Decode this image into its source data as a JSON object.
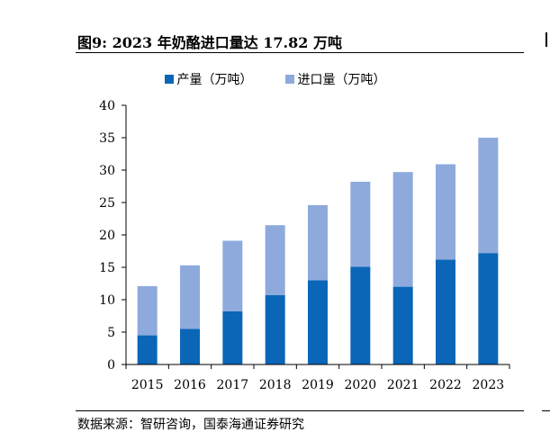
{
  "header": {
    "title": "图9:  2023 年奶酪进口量达 17.82 万吨"
  },
  "footer": {
    "source": "数据来源：智研咨询，国泰海通证券研究"
  },
  "colors": {
    "production": "#0b66b8",
    "import": "#8eaadd",
    "axis": "#000000"
  },
  "chart_data": {
    "type": "bar",
    "stacked": true,
    "categories": [
      "2015",
      "2016",
      "2017",
      "2018",
      "2019",
      "2020",
      "2021",
      "2022",
      "2023"
    ],
    "series": [
      {
        "name": "产量（万吨）",
        "values": [
          4.5,
          5.5,
          8.2,
          10.7,
          13.0,
          15.1,
          12.0,
          16.2,
          17.2
        ]
      },
      {
        "name": "进口量（万吨）",
        "values": [
          7.6,
          9.8,
          10.9,
          10.8,
          11.6,
          13.1,
          17.7,
          14.7,
          17.8
        ]
      }
    ],
    "ylim": [
      0,
      40
    ],
    "yticks": [
      0,
      5,
      10,
      15,
      20,
      25,
      30,
      35,
      40
    ],
    "legend_position": "top",
    "grid": false,
    "xlabel": "",
    "ylabel": ""
  }
}
